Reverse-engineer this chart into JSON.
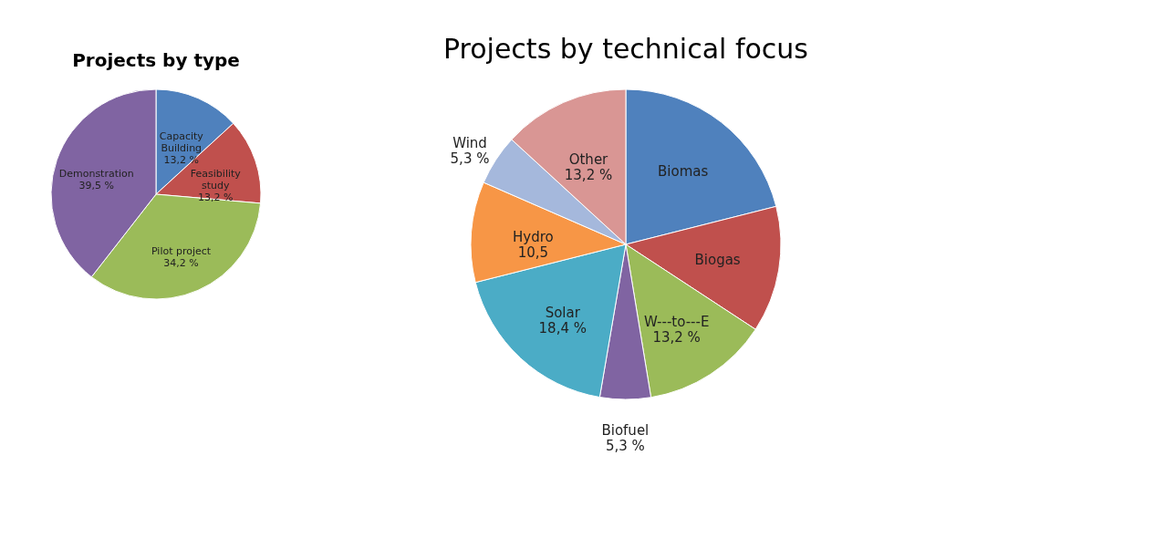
{
  "chart_data": [
    {
      "type": "pie",
      "title": "Projects by type",
      "categories": [
        "Capacity Building",
        "Feasibility study",
        "Pilot project",
        "Demonstration"
      ],
      "values": [
        13.2,
        13.2,
        34.2,
        39.5
      ],
      "colors": [
        "#4f81bd",
        "#c0504d",
        "#9bbb59",
        "#8064a2"
      ],
      "value_labels": [
        "13,2 %",
        "13,2 %",
        "34,2 %",
        "39,5 %"
      ],
      "legend": false
    },
    {
      "type": "pie",
      "title": "Projects by technical focus",
      "categories": [
        "Biomas",
        "Biogas",
        "W---to---E",
        "Biofuel",
        "Solar",
        "Hydro",
        "Wind",
        "Other"
      ],
      "values": [
        21.1,
        13.2,
        13.2,
        5.3,
        18.4,
        10.5,
        5.3,
        13.2
      ],
      "colors": [
        "#4f81bd",
        "#c0504d",
        "#9bbb59",
        "#8064a2",
        "#4bacc6",
        "#f79646",
        "#a5b8dc",
        "#d99694"
      ],
      "value_labels": [
        null,
        null,
        "13,2 %",
        "5,3 %",
        "18,4 %",
        "10,5",
        "5,3 %",
        "13,2 %"
      ],
      "legend": false
    }
  ]
}
